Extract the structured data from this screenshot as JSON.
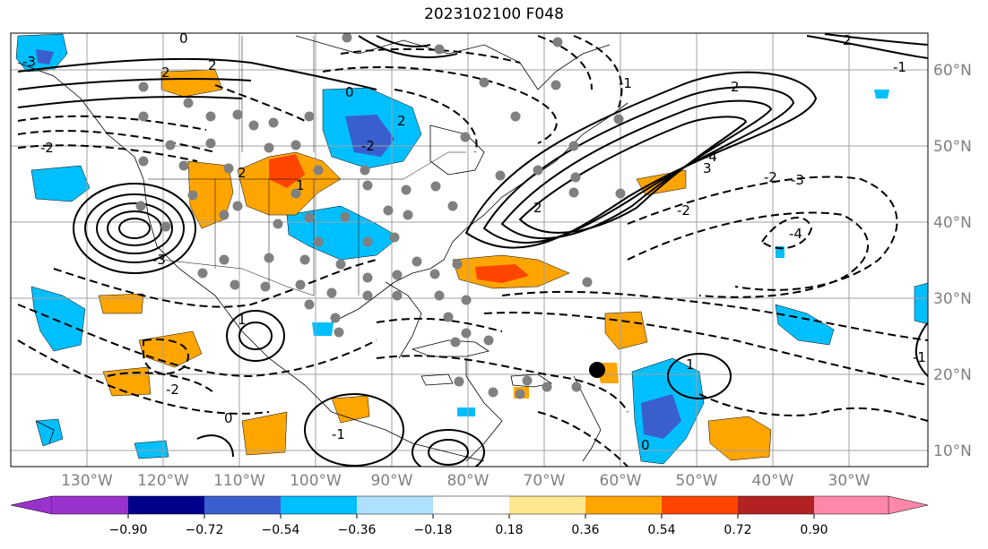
{
  "title": "2023102100 F048",
  "map": {
    "lat_labels": [
      "60°N",
      "50°N",
      "40°N",
      "30°N",
      "20°N",
      "10°N"
    ],
    "lon_labels": [
      "130°W",
      "120°W",
      "110°W",
      "100°W",
      "90°W",
      "80°W",
      "70°W",
      "60°W",
      "50°W",
      "40°W",
      "30°W"
    ],
    "contour_labels": [
      "-3",
      "2",
      "0",
      "2",
      "-2",
      "2",
      "-2",
      "2",
      "1",
      "0",
      "-1",
      "2",
      "-4",
      "-3",
      "-2",
      "3",
      "2",
      "-2",
      "-1",
      "-3",
      "-4",
      "-1",
      "2",
      "0",
      "-1",
      "1",
      "0",
      "1",
      "-2"
    ],
    "gridline_color": "#a0a0a0",
    "land_color": "#ffffff",
    "station_marker_color": "#808080",
    "highlight_marker_color": "#000000",
    "contour_positive_style": "solid",
    "contour_negative_style": "dashed"
  },
  "colorbar": {
    "ticks": [
      "−0.90",
      "−0.72",
      "−0.54",
      "−0.36",
      "−0.18",
      "0.18",
      "0.36",
      "0.54",
      "0.72",
      "0.90"
    ],
    "colors": [
      "#9932cc",
      "#00008b",
      "#3a5fcd",
      "#00bfff",
      "#b0e0ff",
      "#ffffff",
      "#ffe78f",
      "#ffa500",
      "#ff4500",
      "#b22222",
      "#ff88aa"
    ]
  }
}
